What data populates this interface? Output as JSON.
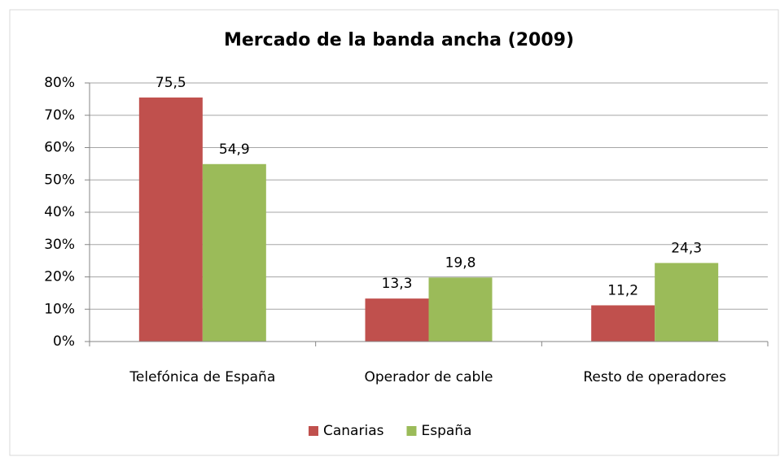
{
  "chart_data": {
    "type": "bar",
    "title": "Mercado de la banda ancha (2009)",
    "categories": [
      "Telefónica de España",
      "Operador de cable",
      "Resto de operadores"
    ],
    "series": [
      {
        "name": "Canarias",
        "color": "#c0504d",
        "values": [
          75.5,
          13.3,
          11.2
        ],
        "value_labels": [
          "75,5",
          "13,3",
          "11,2"
        ]
      },
      {
        "name": "España",
        "color": "#9bbb59",
        "values": [
          54.9,
          19.8,
          24.3
        ],
        "value_labels": [
          "54,9",
          "19,8",
          "24,3"
        ]
      }
    ],
    "ylim": [
      0,
      80
    ],
    "yticks": [
      {
        "value": 0,
        "label": "0%"
      },
      {
        "value": 10,
        "label": "10%"
      },
      {
        "value": 20,
        "label": "20%"
      },
      {
        "value": 30,
        "label": "30%"
      },
      {
        "value": 40,
        "label": "40%"
      },
      {
        "value": 50,
        "label": "50%"
      },
      {
        "value": 60,
        "label": "60%"
      },
      {
        "value": 70,
        "label": "70%"
      },
      {
        "value": 80,
        "label": "80%"
      }
    ],
    "grid": true,
    "legend": "bottom"
  }
}
